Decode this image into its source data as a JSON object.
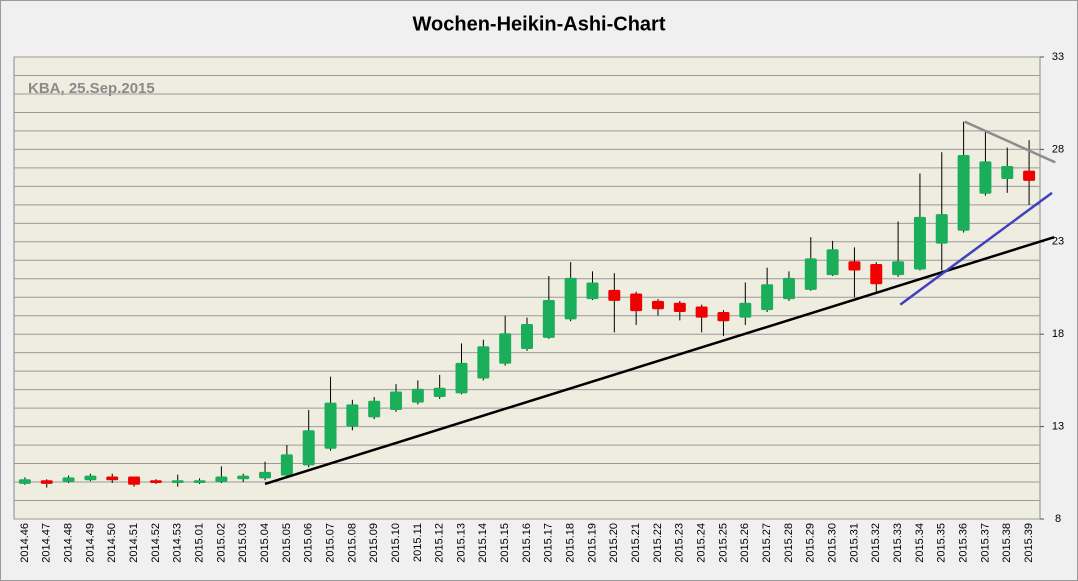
{
  "chart_data": {
    "type": "candlestick",
    "title": "Wochen-Heikin-Ashi-Chart",
    "annotation": "KBA, 25.Sep.2015",
    "categories": [
      "2014.46",
      "2014.47",
      "2014.48",
      "2014.49",
      "2014.50",
      "2014.51",
      "2014.52",
      "2014.53",
      "2015.01",
      "2015.02",
      "2015.03",
      "2015.04",
      "2015.05",
      "2015.06",
      "2015.07",
      "2015.08",
      "2015.09",
      "2015.10",
      "2015.11",
      "2015.12",
      "2015.13",
      "2015.14",
      "2015.15",
      "2015.16",
      "2015.17",
      "2015.18",
      "2015.19",
      "2015.20",
      "2015.21",
      "2015.22",
      "2015.23",
      "2015.24",
      "2015.25",
      "2015.26",
      "2015.27",
      "2015.28",
      "2015.29",
      "2015.30",
      "2015.31",
      "2015.32",
      "2015.33",
      "2015.34",
      "2015.35",
      "2015.36",
      "2015.37",
      "2015.38",
      "2015.39"
    ],
    "open": [
      9.9,
      10.1,
      10.0,
      10.1,
      10.3,
      10.3,
      10.1,
      9.95,
      9.95,
      10.0,
      10.15,
      10.2,
      10.35,
      10.9,
      11.8,
      13.0,
      13.5,
      13.9,
      14.3,
      14.6,
      14.8,
      15.6,
      16.4,
      17.2,
      17.8,
      18.8,
      19.9,
      20.4,
      20.2,
      19.8,
      19.7,
      19.5,
      19.2,
      18.9,
      19.3,
      19.9,
      20.4,
      21.2,
      21.95,
      21.8,
      21.2,
      21.5,
      22.9,
      23.6,
      25.6,
      26.4,
      26.85
    ],
    "high": [
      10.25,
      10.15,
      10.35,
      10.45,
      10.45,
      10.3,
      10.15,
      10.4,
      10.2,
      10.85,
      10.45,
      11.1,
      12.0,
      13.9,
      15.7,
      14.45,
      14.6,
      15.3,
      15.5,
      15.8,
      17.5,
      17.7,
      19.0,
      18.9,
      21.15,
      21.9,
      21.4,
      21.3,
      20.3,
      19.9,
      19.8,
      19.6,
      19.3,
      20.8,
      21.6,
      21.4,
      23.25,
      23.05,
      22.7,
      21.9,
      24.1,
      26.7,
      27.85,
      29.5,
      29.0,
      28.1,
      28.5
    ],
    "low": [
      9.85,
      9.7,
      9.95,
      10.05,
      9.95,
      9.75,
      9.9,
      9.75,
      9.9,
      9.95,
      10.0,
      10.1,
      10.2,
      10.8,
      11.7,
      12.8,
      13.4,
      13.8,
      14.2,
      14.5,
      14.75,
      15.5,
      16.3,
      17.1,
      17.75,
      18.7,
      19.85,
      18.1,
      18.5,
      19.0,
      18.75,
      18.1,
      17.9,
      18.5,
      19.2,
      19.8,
      20.35,
      21.15,
      20.0,
      20.3,
      21.1,
      21.45,
      21.45,
      23.5,
      25.5,
      25.65,
      25.0
    ],
    "close": [
      10.15,
      9.9,
      10.25,
      10.35,
      10.1,
      9.85,
      9.95,
      10.1,
      10.1,
      10.3,
      10.35,
      10.55,
      11.5,
      12.8,
      14.3,
      14.2,
      14.4,
      14.9,
      15.05,
      15.1,
      16.45,
      17.35,
      18.05,
      18.55,
      19.85,
      21.05,
      20.8,
      19.8,
      19.25,
      19.35,
      19.2,
      18.9,
      18.7,
      19.7,
      20.7,
      21.05,
      22.1,
      22.6,
      21.45,
      20.7,
      21.95,
      24.35,
      24.5,
      27.7,
      27.35,
      27.1,
      26.3
    ],
    "up_color": "#1aae5a",
    "down_color": "#f00000",
    "ylim": [
      8,
      33
    ],
    "yticks": [
      8,
      13,
      18,
      23,
      28,
      33
    ],
    "ygrid": [
      8,
      9,
      10,
      11,
      12,
      13,
      14,
      15,
      16,
      17,
      18,
      19,
      20,
      21,
      22,
      23,
      24,
      25,
      26,
      27,
      28,
      29,
      30,
      31,
      32,
      33
    ],
    "trendlines": [
      {
        "color": "#000000",
        "x": [
          11,
          47.15
        ],
        "y": [
          9.9,
          23.25
        ]
      },
      {
        "color": "#4040c0",
        "x": [
          40.1,
          47.05
        ],
        "y": [
          19.6,
          25.65
        ]
      },
      {
        "color": "#8c8c8c",
        "x": [
          43.05,
          47.2
        ],
        "y": [
          29.5,
          27.3
        ]
      }
    ]
  }
}
